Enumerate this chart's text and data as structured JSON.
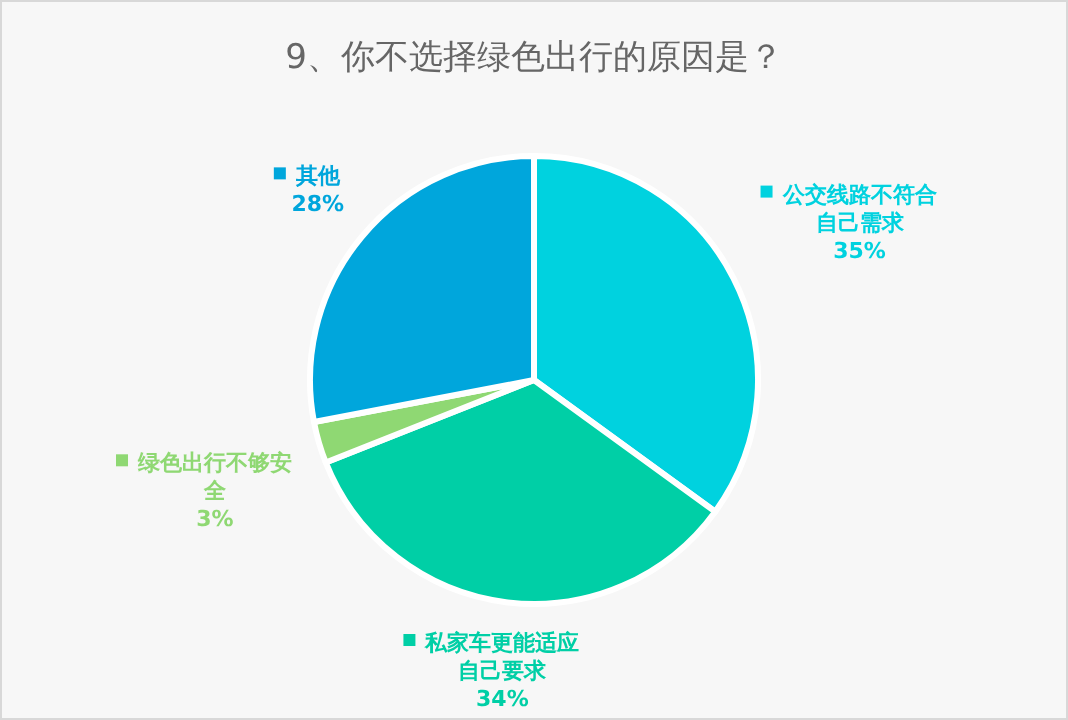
{
  "chart_data": {
    "type": "pie",
    "title": "9、你不选择绿色出行的原因是？",
    "categories": [
      "公交线路不符合自己需求",
      "私家车更能适应自己要求",
      "绿色出行不够安全",
      "其他"
    ],
    "values": [
      35,
      34,
      3,
      28
    ],
    "value_labels": [
      "35%",
      "34%",
      "3%",
      "28%"
    ],
    "colors": [
      "#00d2df",
      "#00cfa6",
      "#8fd873",
      "#00a6dc"
    ],
    "legend": "right"
  }
}
